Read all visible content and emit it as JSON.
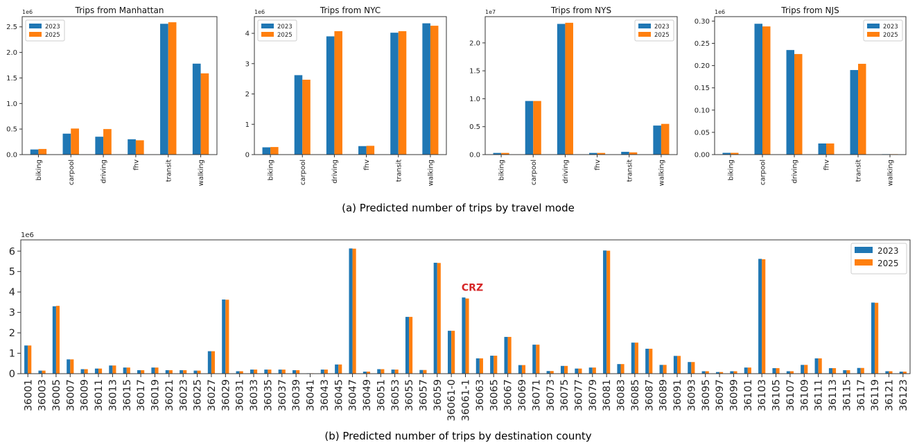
{
  "colors": {
    "s2023": "#1f77b4",
    "s2025": "#ff7f0e",
    "annotation": "#d62728"
  },
  "captions": {
    "a": "(a) Predicted number of trips by travel mode",
    "b": "(b) Predicted number of trips by destination county"
  },
  "chart_data": [
    {
      "type": "bar",
      "title": "Trips from Manhattan",
      "xlabel": "",
      "ylabel": "",
      "scale_label": "1e6",
      "categories": [
        "biking",
        "carpool",
        "driving",
        "fhv",
        "transit",
        "walking"
      ],
      "series": [
        {
          "name": "2023",
          "values": [
            0.1,
            0.41,
            0.35,
            0.3,
            2.56,
            1.78
          ]
        },
        {
          "name": "2025",
          "values": [
            0.11,
            0.51,
            0.5,
            0.28,
            2.59,
            1.59
          ]
        }
      ],
      "ylim": [
        0,
        2.7
      ],
      "yticks": [
        0.0,
        0.5,
        1.0,
        1.5,
        2.0,
        2.5
      ],
      "ytick_labels": [
        "0.0",
        "0.5",
        "1.0",
        "1.5",
        "2.0",
        "2.5"
      ],
      "legend": "upper-left",
      "grid": false
    },
    {
      "type": "bar",
      "title": "Trips from NYC",
      "xlabel": "",
      "ylabel": "",
      "scale_label": "1e6",
      "categories": [
        "biking",
        "carpool",
        "driving",
        "fhv",
        "transit",
        "walking"
      ],
      "series": [
        {
          "name": "2023",
          "values": [
            0.24,
            2.62,
            3.9,
            0.28,
            4.02,
            4.33
          ]
        },
        {
          "name": "2025",
          "values": [
            0.25,
            2.47,
            4.07,
            0.29,
            4.07,
            4.25
          ]
        }
      ],
      "ylim": [
        0,
        4.55
      ],
      "yticks": [
        0,
        1,
        2,
        3,
        4
      ],
      "ytick_labels": [
        "0",
        "1",
        "2",
        "3",
        "4"
      ],
      "legend": "upper-left",
      "grid": false
    },
    {
      "type": "bar",
      "title": "Trips from NYS",
      "xlabel": "",
      "ylabel": "",
      "scale_label": "1e7",
      "categories": [
        "biking",
        "carpool",
        "driving",
        "fhv",
        "transit",
        "walking"
      ],
      "series": [
        {
          "name": "2023",
          "values": [
            0.03,
            0.96,
            2.34,
            0.03,
            0.05,
            0.52
          ]
        },
        {
          "name": "2025",
          "values": [
            0.03,
            0.96,
            2.36,
            0.03,
            0.04,
            0.55
          ]
        }
      ],
      "ylim": [
        0,
        2.47
      ],
      "yticks": [
        0.0,
        0.5,
        1.0,
        1.5,
        2.0
      ],
      "ytick_labels": [
        "0.0",
        "0.5",
        "1.0",
        "1.5",
        "2.0"
      ],
      "legend": "upper-right",
      "grid": false
    },
    {
      "type": "bar",
      "title": "Trips from NJS",
      "xlabel": "",
      "ylabel": "",
      "scale_label": "1e6",
      "categories": [
        "biking",
        "carpool",
        "driving",
        "fhv",
        "transit",
        "walking"
      ],
      "series": [
        {
          "name": "2023",
          "values": [
            0.004,
            0.294,
            0.235,
            0.025,
            0.19,
            0.001
          ]
        },
        {
          "name": "2025",
          "values": [
            0.004,
            0.288,
            0.226,
            0.025,
            0.204,
            0.001
          ]
        }
      ],
      "ylim": [
        0,
        0.31
      ],
      "yticks": [
        0.0,
        0.05,
        0.1,
        0.15,
        0.2,
        0.25,
        0.3
      ],
      "ytick_labels": [
        "0.00",
        "0.05",
        "0.10",
        "0.15",
        "0.20",
        "0.25",
        "0.30"
      ],
      "legend": "upper-right",
      "grid": false
    },
    {
      "type": "bar",
      "title": "",
      "xlabel": "",
      "ylabel": "",
      "scale_label": "1e6",
      "categories": [
        "36001",
        "36003",
        "36005",
        "36007",
        "36009",
        "36011",
        "36013",
        "36015",
        "36017",
        "36019",
        "36021",
        "36023",
        "36025",
        "36027",
        "36029",
        "36031",
        "36033",
        "36035",
        "36037",
        "36039",
        "36041",
        "36043",
        "36045",
        "36047",
        "36049",
        "36051",
        "36053",
        "36055",
        "36057",
        "36059",
        "36061-0",
        "36061-1",
        "36063",
        "36065",
        "36067",
        "36069",
        "36071",
        "36073",
        "36075",
        "36077",
        "36079",
        "36081",
        "36083",
        "36085",
        "36087",
        "36089",
        "36091",
        "36093",
        "36095",
        "36097",
        "36099",
        "36101",
        "36103",
        "36105",
        "36107",
        "36109",
        "36111",
        "36113",
        "36115",
        "36117",
        "36119",
        "36121",
        "36123"
      ],
      "series": [
        {
          "name": "2023",
          "values": [
            1.38,
            0.15,
            3.3,
            0.7,
            0.22,
            0.25,
            0.4,
            0.3,
            0.17,
            0.3,
            0.17,
            0.17,
            0.15,
            1.1,
            3.63,
            0.12,
            0.2,
            0.2,
            0.2,
            0.17,
            0.02,
            0.2,
            0.45,
            6.13,
            0.1,
            0.22,
            0.2,
            2.78,
            0.18,
            5.43,
            2.1,
            3.73,
            0.75,
            0.88,
            1.8,
            0.42,
            1.42,
            0.13,
            0.38,
            0.25,
            0.3,
            6.03,
            0.47,
            1.52,
            1.22,
            0.43,
            0.87,
            0.57,
            0.12,
            0.08,
            0.12,
            0.3,
            5.62,
            0.27,
            0.12,
            0.43,
            0.75,
            0.27,
            0.17,
            0.28,
            3.48,
            0.12,
            0.1
          ]
        },
        {
          "name": "2025",
          "values": [
            1.38,
            0.15,
            3.32,
            0.7,
            0.22,
            0.25,
            0.4,
            0.3,
            0.17,
            0.3,
            0.17,
            0.17,
            0.15,
            1.1,
            3.62,
            0.12,
            0.2,
            0.2,
            0.2,
            0.17,
            0.02,
            0.2,
            0.45,
            6.12,
            0.1,
            0.22,
            0.2,
            2.78,
            0.18,
            5.42,
            2.1,
            3.68,
            0.75,
            0.88,
            1.8,
            0.42,
            1.42,
            0.13,
            0.38,
            0.25,
            0.3,
            6.02,
            0.47,
            1.52,
            1.22,
            0.43,
            0.87,
            0.57,
            0.12,
            0.08,
            0.12,
            0.3,
            5.6,
            0.27,
            0.12,
            0.43,
            0.75,
            0.27,
            0.17,
            0.28,
            3.47,
            0.12,
            0.1
          ]
        }
      ],
      "ylim": [
        0,
        6.55
      ],
      "yticks": [
        0,
        1,
        2,
        3,
        4,
        5,
        6
      ],
      "ytick_labels": [
        "0",
        "1",
        "2",
        "3",
        "4",
        "5",
        "6"
      ],
      "legend": "upper-right",
      "grid": false,
      "annotations": [
        {
          "text": "CRZ",
          "category": "36061-1",
          "y": 4.05
        }
      ]
    }
  ]
}
